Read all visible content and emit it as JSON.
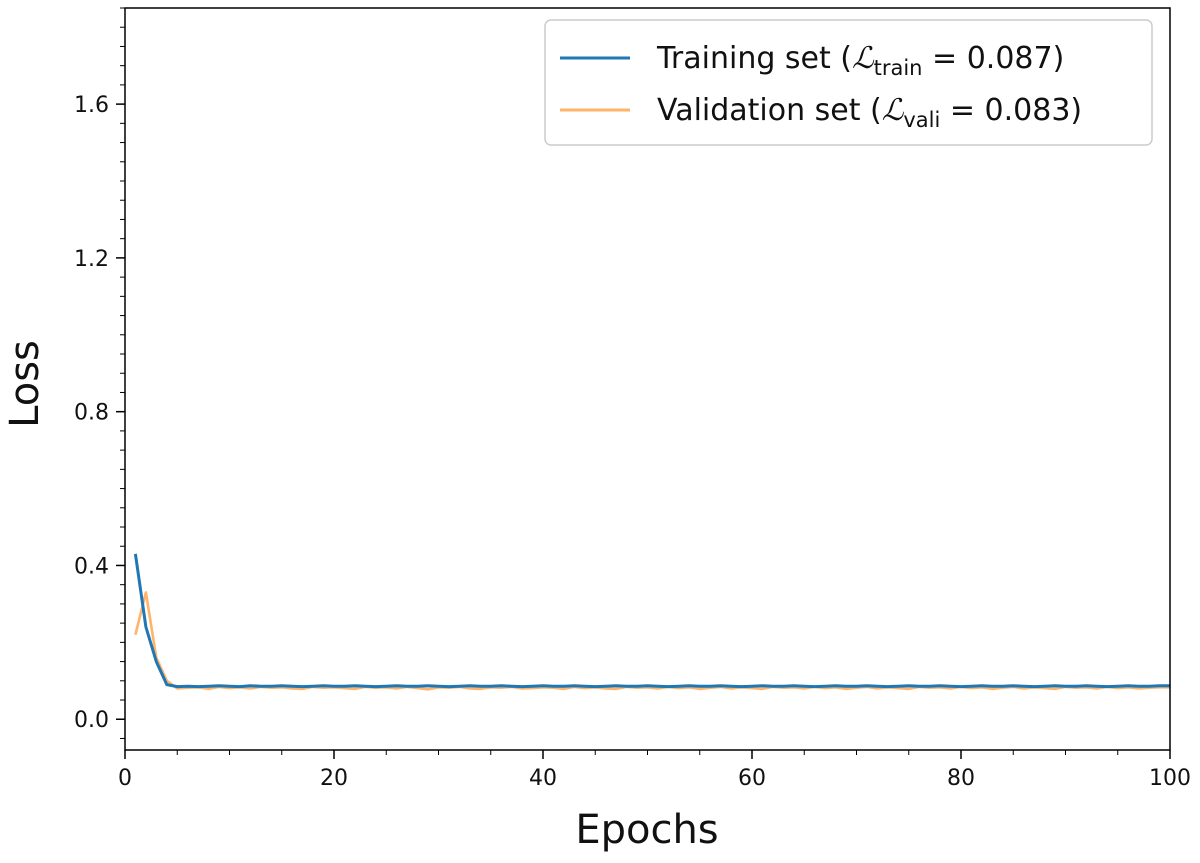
{
  "chart_data": {
    "type": "line",
    "title": "",
    "xlabel": "Epochs",
    "ylabel": "Loss",
    "xlim": [
      0,
      100
    ],
    "ylim": [
      -0.08,
      1.85
    ],
    "xticks": [
      0,
      20,
      40,
      60,
      80,
      100
    ],
    "xtick_labels": [
      "0",
      "20",
      "40",
      "60",
      "80",
      "100"
    ],
    "yticks": [
      0.0,
      0.4,
      0.8,
      1.2,
      1.6
    ],
    "ytick_labels": [
      "0.0",
      "0.4",
      "0.8",
      "1.2",
      "1.6"
    ],
    "grid": false,
    "legend_position": "top-right",
    "series": [
      {
        "name": "Training set (ℒtrain = 0.087)",
        "legend": {
          "label": "Training set (",
          "symbol": "ℒ",
          "subscript": "train",
          "suffix": " = 0.087)"
        },
        "color": "#1f77b4",
        "x": [
          1,
          2,
          3,
          4,
          5,
          6,
          7,
          8,
          9,
          10,
          11,
          12,
          13,
          14,
          15,
          16,
          17,
          18,
          19,
          20,
          21,
          22,
          23,
          24,
          25,
          26,
          27,
          28,
          29,
          30,
          31,
          32,
          33,
          34,
          35,
          36,
          37,
          38,
          39,
          40,
          41,
          42,
          43,
          44,
          45,
          46,
          47,
          48,
          49,
          50,
          51,
          52,
          53,
          54,
          55,
          56,
          57,
          58,
          59,
          60,
          61,
          62,
          63,
          64,
          65,
          66,
          67,
          68,
          69,
          70,
          71,
          72,
          73,
          74,
          75,
          76,
          77,
          78,
          79,
          80,
          81,
          82,
          83,
          84,
          85,
          86,
          87,
          88,
          89,
          90,
          91,
          92,
          93,
          94,
          95,
          96,
          97,
          98,
          99,
          100
        ],
        "y": [
          0.43,
          0.24,
          0.15,
          0.09,
          0.085,
          0.086,
          0.085,
          0.086,
          0.087,
          0.086,
          0.085,
          0.087,
          0.086,
          0.086,
          0.087,
          0.086,
          0.085,
          0.086,
          0.087,
          0.086,
          0.086,
          0.087,
          0.086,
          0.085,
          0.086,
          0.087,
          0.086,
          0.086,
          0.087,
          0.086,
          0.085,
          0.086,
          0.087,
          0.086,
          0.086,
          0.087,
          0.086,
          0.085,
          0.086,
          0.087,
          0.086,
          0.086,
          0.087,
          0.086,
          0.085,
          0.086,
          0.087,
          0.086,
          0.086,
          0.087,
          0.086,
          0.085,
          0.086,
          0.087,
          0.086,
          0.086,
          0.087,
          0.086,
          0.085,
          0.086,
          0.087,
          0.086,
          0.086,
          0.087,
          0.086,
          0.085,
          0.086,
          0.087,
          0.086,
          0.086,
          0.087,
          0.086,
          0.085,
          0.086,
          0.087,
          0.086,
          0.086,
          0.087,
          0.086,
          0.085,
          0.086,
          0.087,
          0.086,
          0.086,
          0.087,
          0.086,
          0.085,
          0.086,
          0.087,
          0.086,
          0.086,
          0.087,
          0.086,
          0.085,
          0.086,
          0.087,
          0.086,
          0.086,
          0.087,
          0.087
        ]
      },
      {
        "name": "Validation set (ℒvali = 0.083)",
        "legend": {
          "label": "Validation set (",
          "symbol": "ℒ",
          "subscript": "vali",
          "suffix": " = 0.083)"
        },
        "color": "#ffb36b",
        "x": [
          1,
          2,
          3,
          4,
          5,
          6,
          7,
          8,
          9,
          10,
          11,
          12,
          13,
          14,
          15,
          16,
          17,
          18,
          19,
          20,
          21,
          22,
          23,
          24,
          25,
          26,
          27,
          28,
          29,
          30,
          31,
          32,
          33,
          34,
          35,
          36,
          37,
          38,
          39,
          40,
          41,
          42,
          43,
          44,
          45,
          46,
          47,
          48,
          49,
          50,
          51,
          52,
          53,
          54,
          55,
          56,
          57,
          58,
          59,
          60,
          61,
          62,
          63,
          64,
          65,
          66,
          67,
          68,
          69,
          70,
          71,
          72,
          73,
          74,
          75,
          76,
          77,
          78,
          79,
          80,
          81,
          82,
          83,
          84,
          85,
          86,
          87,
          88,
          89,
          90,
          91,
          92,
          93,
          94,
          95,
          96,
          97,
          98,
          99,
          100
        ],
        "y": [
          0.22,
          0.33,
          0.16,
          0.1,
          0.08,
          0.082,
          0.083,
          0.079,
          0.084,
          0.081,
          0.083,
          0.08,
          0.084,
          0.082,
          0.083,
          0.08,
          0.079,
          0.084,
          0.082,
          0.083,
          0.081,
          0.079,
          0.084,
          0.082,
          0.083,
          0.08,
          0.084,
          0.081,
          0.078,
          0.083,
          0.082,
          0.084,
          0.08,
          0.079,
          0.083,
          0.082,
          0.084,
          0.08,
          0.081,
          0.083,
          0.082,
          0.079,
          0.084,
          0.081,
          0.083,
          0.08,
          0.079,
          0.084,
          0.082,
          0.083,
          0.08,
          0.084,
          0.081,
          0.083,
          0.079,
          0.082,
          0.084,
          0.08,
          0.083,
          0.081,
          0.079,
          0.084,
          0.082,
          0.083,
          0.08,
          0.084,
          0.081,
          0.083,
          0.079,
          0.082,
          0.084,
          0.08,
          0.083,
          0.081,
          0.079,
          0.084,
          0.082,
          0.083,
          0.08,
          0.084,
          0.081,
          0.083,
          0.079,
          0.082,
          0.084,
          0.08,
          0.083,
          0.081,
          0.079,
          0.084,
          0.082,
          0.083,
          0.08,
          0.084,
          0.081,
          0.083,
          0.08,
          0.082,
          0.083,
          0.083
        ]
      }
    ]
  }
}
